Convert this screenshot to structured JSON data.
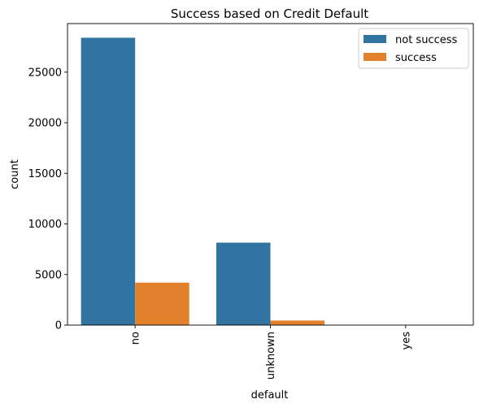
{
  "chart_data": {
    "type": "bar",
    "title": "Success based on Credit Default",
    "xlabel": "default",
    "ylabel": "count",
    "categories": [
      "no",
      "unknown",
      "yes"
    ],
    "series": [
      {
        "name": "not success",
        "values": [
          28400,
          8150,
          3
        ],
        "color": "#3274a1"
      },
      {
        "name": "success",
        "values": [
          4200,
          450,
          0
        ],
        "color": "#e1812c"
      }
    ],
    "ylim": [
      0,
      29800
    ],
    "yticks": [
      0,
      5000,
      10000,
      15000,
      20000,
      25000
    ],
    "ytick_labels": [
      "0",
      "5000",
      "10000",
      "15000",
      "20000",
      "25000"
    ],
    "legend_position": "top-right",
    "grid": false,
    "x_tick_rotation": "vertical"
  }
}
